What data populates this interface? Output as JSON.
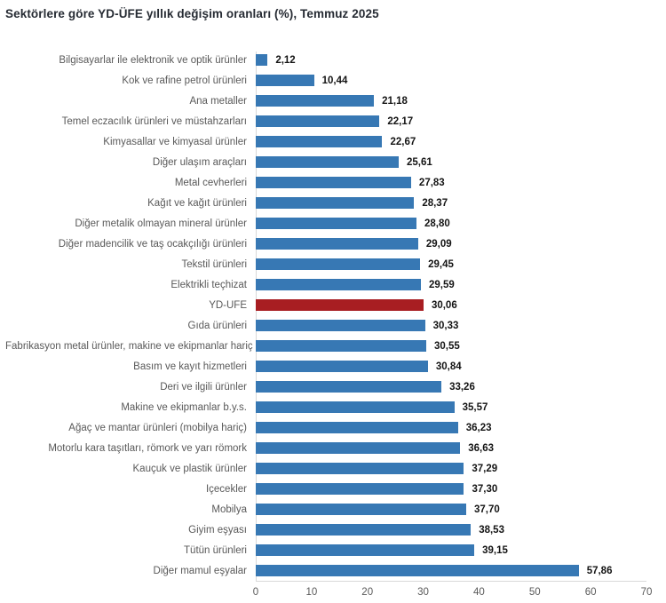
{
  "title": "Sektörlere göre YD-ÜFE yıllık değişim oranları (%), Temmuz 2025",
  "chart_data": {
    "type": "bar",
    "orientation": "horizontal",
    "title": "Sektörlere göre YD-ÜFE yıllık değişim oranları (%), Temmuz 2025",
    "categories": [
      "Bilgisayarlar ile elektronik ve optik ürünler",
      "Kok ve rafine petrol ürünleri",
      "Ana metaller",
      "Temel eczacılık ürünleri ve müstahzarları",
      "Kimyasallar ve kimyasal ürünler",
      "Diğer ulaşım araçları",
      "Metal cevherleri",
      "Kağıt ve kağıt ürünleri",
      "Diğer metalik olmayan mineral ürünler",
      "Diğer madencilik ve taş ocakçılığı ürünleri",
      "Tekstil ürünleri",
      "Elektrikli teçhizat",
      "YD-ÜFE",
      "Gıda ürünleri",
      "Fabrikasyon metal ürünler, makine ve ekipmanlar hariç",
      "Basım ve kayıt hizmetleri",
      "Deri ve ilgili ürünler",
      "Makine ve ekipmanlar b.y.s.",
      "Ağaç ve mantar ürünleri (mobilya hariç)",
      "Motorlu kara taşıtları, römork ve yarı römork",
      "Kauçuk ve plastik ürünler",
      "İçecekler",
      "Mobilya",
      "Giyim eşyası",
      "Tütün ürünleri",
      "Diğer mamul eşyalar"
    ],
    "values": [
      2.12,
      10.44,
      21.18,
      22.17,
      22.67,
      25.61,
      27.83,
      28.37,
      28.8,
      29.09,
      29.45,
      29.59,
      30.06,
      30.33,
      30.55,
      30.84,
      33.26,
      35.57,
      36.23,
      36.63,
      37.29,
      37.3,
      37.7,
      38.53,
      39.15,
      57.86
    ],
    "value_labels": [
      "2,12",
      "10,44",
      "21,18",
      "22,17",
      "22,67",
      "25,61",
      "27,83",
      "28,37",
      "28,80",
      "29,09",
      "29,45",
      "29,59",
      "30,06",
      "30,33",
      "30,55",
      "30,84",
      "33,26",
      "35,57",
      "36,23",
      "36,63",
      "37,29",
      "37,30",
      "37,70",
      "38,53",
      "39,15",
      "57,86"
    ],
    "highlight_category": "YD-ÜFE",
    "highlight_index": 12,
    "bar_color": "#3778b4",
    "highlight_color": "#a81e22",
    "category_label_color": "#595959",
    "value_label_color": "#141414",
    "axis_line_color": "#d9d9d9",
    "xlabel": "",
    "ylabel": "",
    "xlim": [
      0,
      70
    ],
    "x_ticks": [
      0,
      10,
      20,
      30,
      40,
      50,
      60,
      70
    ],
    "legend": "none",
    "grid": "off"
  }
}
